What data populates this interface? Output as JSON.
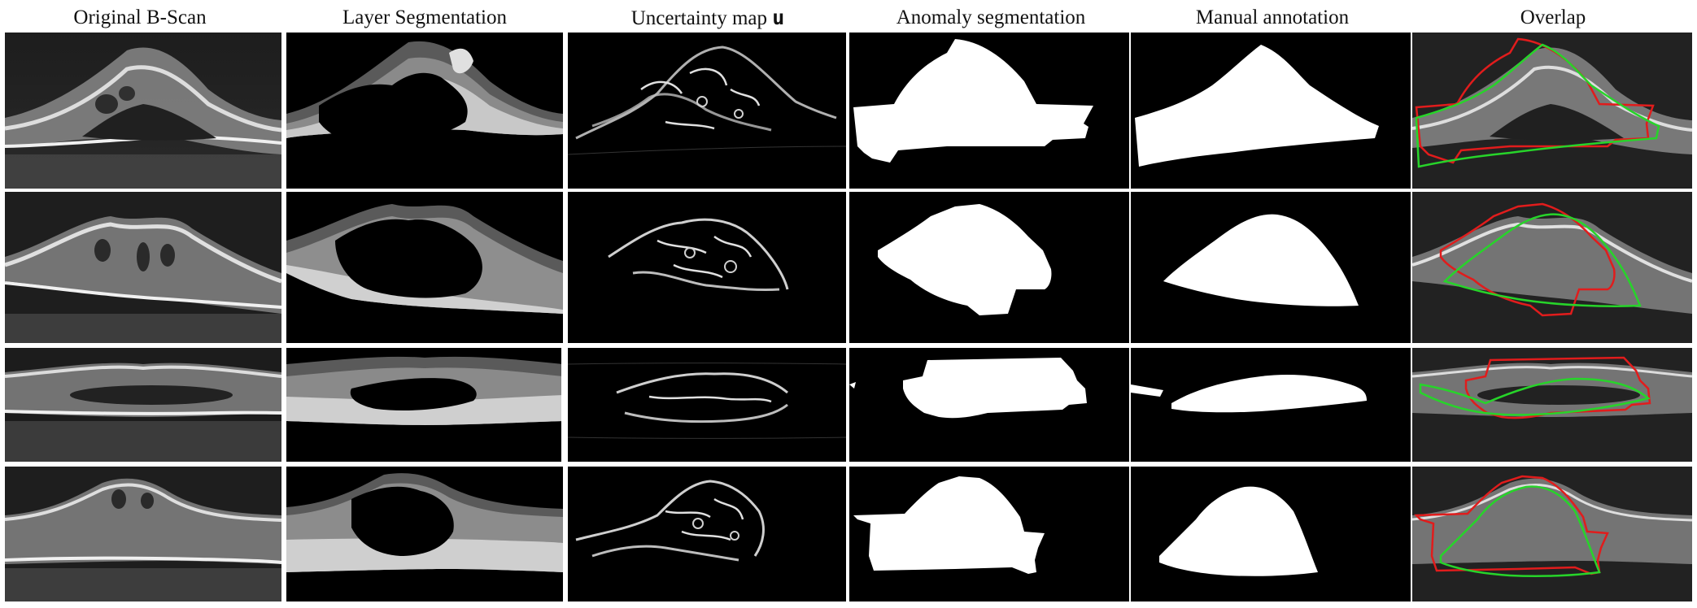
{
  "figure": {
    "columns": [
      {
        "key": "bscan",
        "title": "Original B-Scan"
      },
      {
        "key": "layers",
        "title": "Layer Segmentation"
      },
      {
        "key": "uncertainty",
        "title_prefix": "Uncertainty map ",
        "title_symbol": "u"
      },
      {
        "key": "anomaly",
        "title": "Anomaly segmentation"
      },
      {
        "key": "manual",
        "title": "Manual annotation"
      },
      {
        "key": "overlap",
        "title": "Overlap"
      }
    ],
    "rows": [
      {
        "id": "case-1"
      },
      {
        "id": "case-2"
      },
      {
        "id": "case-3"
      },
      {
        "id": "case-4"
      }
    ],
    "colors": {
      "background": "#ffffff",
      "tile_background": "#000000",
      "mask": "#ffffff",
      "overlap_prediction": "#e11c1c",
      "overlap_manual": "#27d42a"
    }
  }
}
